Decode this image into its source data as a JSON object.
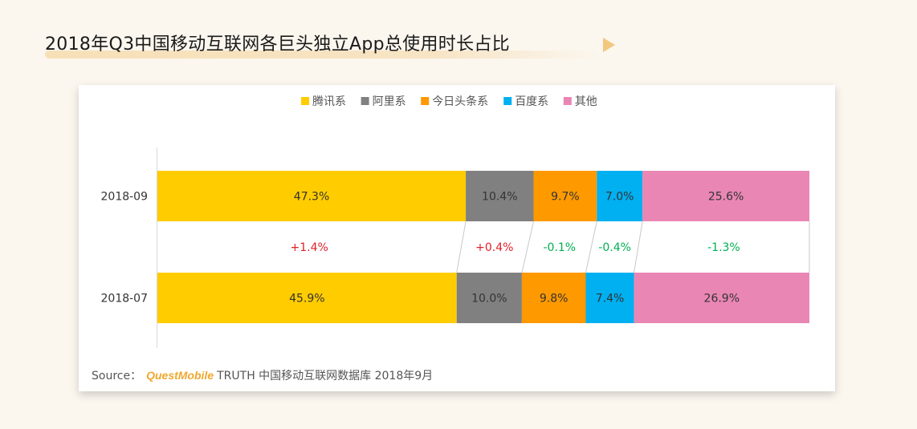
{
  "title": "2018年Q3中国移动互联网各巨头独立App总使用时长占比",
  "source": {
    "label": "Source：",
    "brand": "QuestMobile",
    "text": "TRUTH 中国移动互联网数据库 2018年9月"
  },
  "chart_data": {
    "type": "bar",
    "orientation": "horizontal",
    "stacked": true,
    "percent_stacked": true,
    "legend_position": "top",
    "categories": [
      "2018-09",
      "2018-07"
    ],
    "series": [
      {
        "name": "腾讯系",
        "values": [
          47.3,
          45.9
        ],
        "labels": [
          "47.3%",
          "45.9%"
        ],
        "color": "#ffcc00"
      },
      {
        "name": "阿里系",
        "values": [
          10.4,
          10.0
        ],
        "labels": [
          "10.4%",
          "10.0%"
        ],
        "color": "#808080"
      },
      {
        "name": "今日头条系",
        "values": [
          9.7,
          9.8
        ],
        "labels": [
          "9.7%",
          "9.8%"
        ],
        "color": "#ff9900"
      },
      {
        "name": "百度系",
        "values": [
          7.0,
          7.4
        ],
        "labels": [
          "7.0%",
          "7.4%"
        ],
        "color": "#00b0f0"
      },
      {
        "name": "其他",
        "values": [
          25.6,
          26.9
        ],
        "labels": [
          "25.6%",
          "26.9%"
        ],
        "color": "#e986b4"
      }
    ],
    "changes": [
      {
        "series": "腾讯系",
        "label": "+1.4%",
        "color": "#e0202a"
      },
      {
        "series": "阿里系",
        "label": "+0.4%",
        "color": "#e0202a"
      },
      {
        "series": "今日头条系",
        "label": "-0.1%",
        "color": "#00b050"
      },
      {
        "series": "百度系",
        "label": "-0.4%",
        "color": "#00b050"
      },
      {
        "series": "其他",
        "label": "-1.3%",
        "color": "#00b050"
      }
    ],
    "xlim": [
      0,
      100
    ]
  }
}
